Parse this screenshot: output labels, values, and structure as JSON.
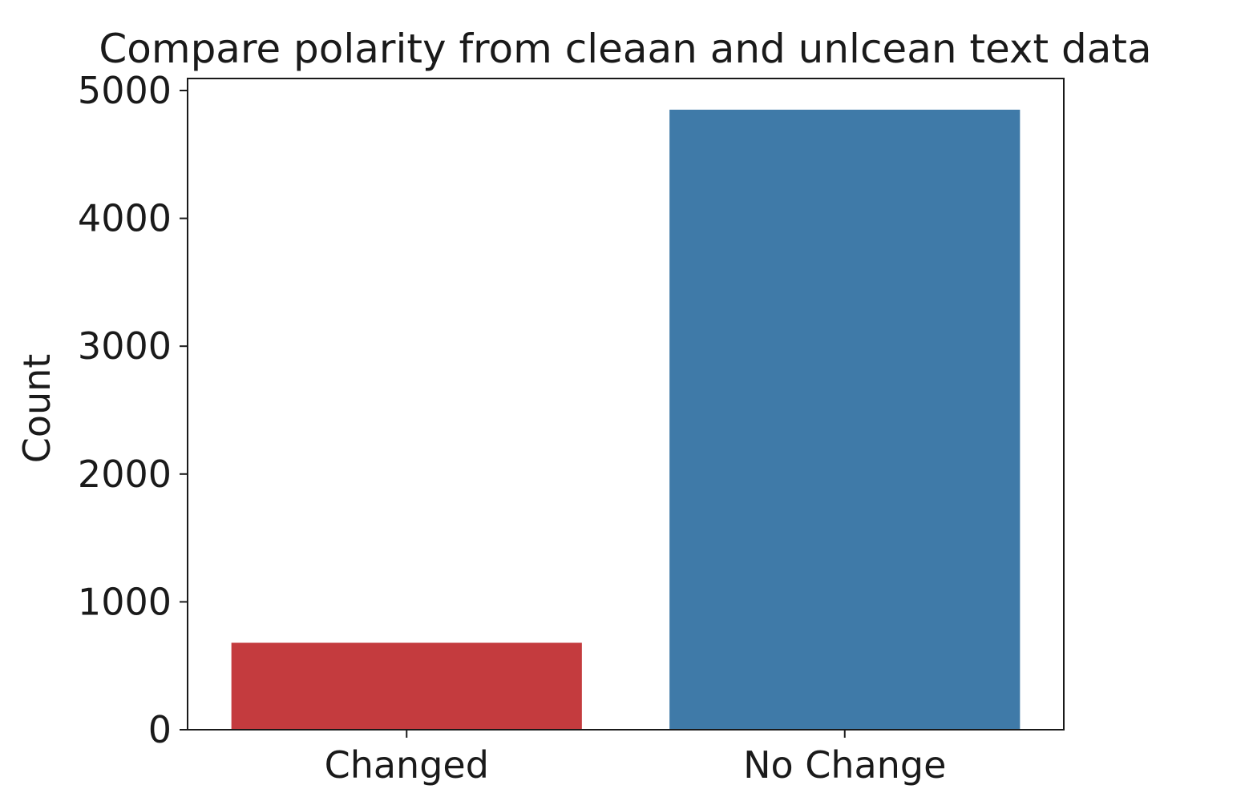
{
  "chart_data": {
    "type": "bar",
    "title": "Compare polarity from cleaan and unlcean text data",
    "xlabel": "",
    "ylabel": "Count",
    "categories": [
      "Changed",
      "No Change"
    ],
    "values": [
      680,
      4850
    ],
    "colors": [
      "#c43b3e",
      "#3f7aa8"
    ],
    "ylim": [
      0,
      5100
    ],
    "yticks": [
      0,
      1000,
      2000,
      3000,
      4000,
      5000
    ],
    "grid": false,
    "legend": "none"
  }
}
